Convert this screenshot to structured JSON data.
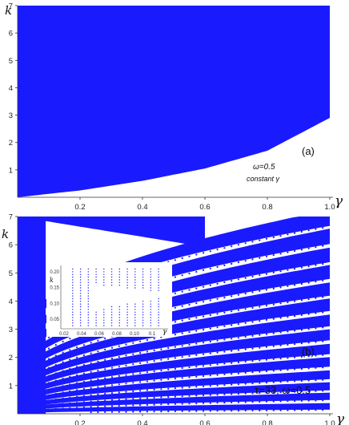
{
  "figure": {
    "panels": [
      {
        "id": "a",
        "panel_label": "(a)",
        "omega_label": "ω=0.5",
        "subtitle": "constant γ",
        "xlabel": "γ",
        "ylabel": "k",
        "xticks": [
          "0.2",
          "0.4",
          "0.6",
          "0.8",
          "1.0"
        ],
        "yticks": [
          "1",
          "2",
          "3",
          "4",
          "5",
          "6",
          "7"
        ]
      },
      {
        "id": "b",
        "panel_label": "(b)",
        "params_label": "τ=33, ω=0.5",
        "xlabel": "γ",
        "ylabel": "k",
        "xticks": [
          "0.2",
          "0.4",
          "0.6",
          "0.8",
          "1.0"
        ],
        "yticks": [
          "1",
          "2",
          "3",
          "4",
          "5",
          "6",
          "7"
        ],
        "inset": {
          "xlabel": "γ",
          "ylabel": "k",
          "xticks": [
            "0.02",
            "0.04",
            "0.06",
            "0.08",
            "0.10",
            "0.1"
          ],
          "yticks": [
            "0.05",
            "0.10",
            "0.15",
            "0.20"
          ]
        }
      }
    ]
  },
  "chart_data": [
    {
      "type": "area",
      "panel": "a",
      "xlim": [
        0.0,
        1.0
      ],
      "ylim": [
        0,
        7
      ],
      "fill_color": "#1a1aff",
      "region": "k above boundary curve is filled",
      "boundary": {
        "x": [
          0.0,
          0.2,
          0.4,
          0.6,
          0.8,
          1.0
        ],
        "k": [
          0.0,
          0.25,
          0.6,
          1.05,
          1.7,
          2.9
        ]
      }
    },
    {
      "type": "scatter",
      "panel": "b",
      "xlim": [
        0.0,
        1.0
      ],
      "ylim": [
        0,
        7
      ],
      "fill_color": "#1a1aff",
      "bands": {
        "count": 14,
        "k_at_gamma_1": [
          0.2,
          0.55,
          0.9,
          1.3,
          1.75,
          2.2,
          2.7,
          3.2,
          3.75,
          4.3,
          4.9,
          5.5,
          6.15,
          6.8
        ],
        "k_at_gamma_0": [
          0.02,
          0.05,
          0.09,
          0.14,
          0.2,
          0.28,
          0.38,
          0.5,
          0.65,
          0.85,
          1.1,
          1.4,
          1.8,
          2.3
        ]
      },
      "inset": {
        "xlim": [
          0.0,
          0.12
        ],
        "ylim": [
          0.02,
          0.22
        ]
      }
    }
  ]
}
